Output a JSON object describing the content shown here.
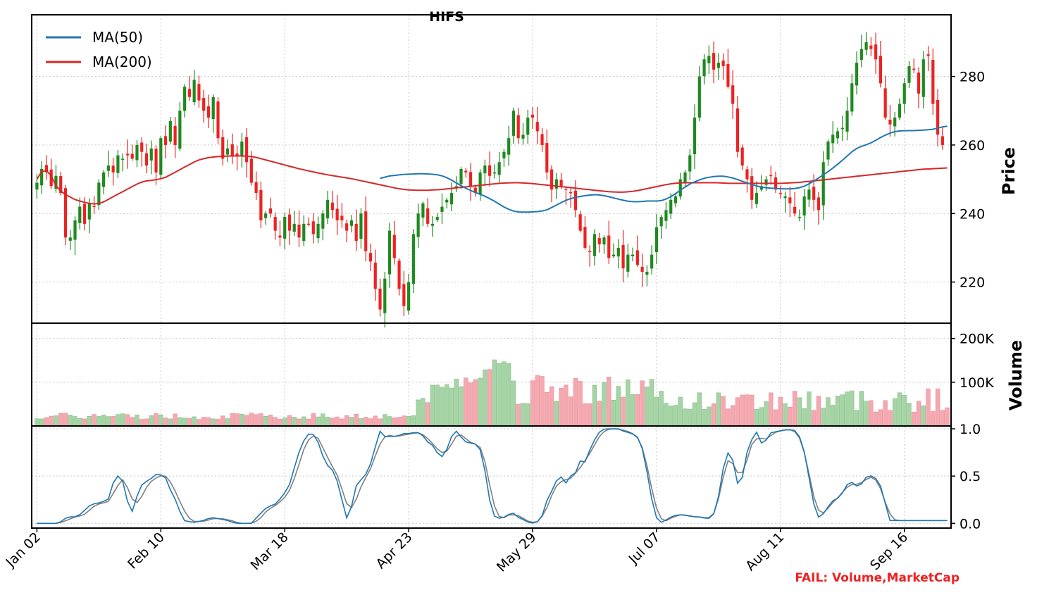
{
  "title": "HIFS",
  "fail_label": "FAIL: Volume,MarketCap",
  "colors": {
    "up": "#1f8a1f",
    "down": "#ee2222",
    "up_volume": "#a6d4a6",
    "down_volume": "#f5a8b0",
    "ma50": "#1f77b4",
    "ma200": "#d62728",
    "stoch_k": "#1f77b4",
    "stoch_d": "#808080",
    "grid": "#c8c8c8",
    "axis": "#000000",
    "fail_text": "#ee2222"
  },
  "chart_data": [
    {
      "type": "candlestick",
      "panel": "price",
      "ylabel": "Price",
      "ylim": [
        208,
        298
      ],
      "yticks": [
        220,
        240,
        260,
        280
      ],
      "grid": true,
      "legend": {
        "placement": "top-left",
        "entries": [
          "MA(50)",
          "MA(200)"
        ]
      },
      "x_ticks": [
        "Jan 02",
        "Feb 10",
        "Mar 18",
        "Apr 23",
        "May 29",
        "Jul 07",
        "Aug 11",
        "Sep 16"
      ],
      "x_tick_index": [
        0,
        26,
        52,
        78,
        104,
        130,
        156,
        182
      ],
      "candles_count": 192,
      "close": [
        249.0,
        253.0,
        252.0,
        248.0,
        251.0,
        246.0,
        233.0,
        233.0,
        238.0,
        242.0,
        237.0,
        243.0,
        242.0,
        249.0,
        252.0,
        254.0,
        252.0,
        257.0,
        256.0,
        257.0,
        256.0,
        260.0,
        258.0,
        254.0,
        259.0,
        252.0,
        262.0,
        260.0,
        267.0,
        260.0,
        270.0,
        277.0,
        274.0,
        279.0,
        273.0,
        270.0,
        268.0,
        274.0,
        262.0,
        256.0,
        259.0,
        257.0,
        257.0,
        261.0,
        255.0,
        249.0,
        246.0,
        238.0,
        240.0,
        240.0,
        235.0,
        233.0,
        239.0,
        235.0,
        237.0,
        233.0,
        237.0,
        237.0,
        234.0,
        237.0,
        240.0,
        244.0,
        241.0,
        238.0,
        238.0,
        235.0,
        238.0,
        232.0,
        240.0,
        229.0,
        226.0,
        218.0,
        212.0,
        221.0,
        235.0,
        227.0,
        218.0,
        213.0,
        220.0,
        234.0,
        240.0,
        243.0,
        237.0,
        237.0,
        239.0,
        242.0,
        244.0,
        246.0,
        248.0,
        253.0,
        252.0,
        248.0,
        246.0,
        252.0,
        254.0,
        251.0,
        252.0,
        255.0,
        258.0,
        262.0,
        270.0,
        262.0,
        263.0,
        268.0,
        268.0,
        264.0,
        260.0,
        252.0,
        247.0,
        250.0,
        248.0,
        247.0,
        246.0,
        241.0,
        235.0,
        230.0,
        229.0,
        234.0,
        231.0,
        233.0,
        227.0,
        228.0,
        230.0,
        224.0,
        228.0,
        228.0,
        225.0,
        223.0,
        223.0,
        228.0,
        236.0,
        239.0,
        241.0,
        244.0,
        245.0,
        250.0,
        252.0,
        257.0,
        268.0,
        280.0,
        285.0,
        286.0,
        282.0,
        284.0,
        283.0,
        277.0,
        272.0,
        258.0,
        254.0,
        250.0,
        244.0,
        246.0,
        248.0,
        250.0,
        251.0,
        247.0,
        246.0,
        245.0,
        243.0,
        240.0,
        239.0,
        245.0,
        247.0,
        244.0,
        241.0,
        255.0,
        261.0,
        263.0,
        264.0,
        265.0,
        270.0,
        278.0,
        284.0,
        288.0,
        290.0,
        288.0,
        285.0,
        278.0,
        268.0,
        266.0,
        268.0,
        272.0,
        278.0,
        283.0,
        282.0,
        275.0,
        285.0,
        286.0,
        272.0,
        263.0,
        260.0
      ],
      "ma50": [
        null,
        null,
        null,
        null,
        null,
        null,
        null,
        null,
        null,
        null,
        null,
        null,
        null,
        null,
        null,
        null,
        null,
        null,
        null,
        null,
        null,
        null,
        null,
        null,
        null,
        null,
        null,
        null,
        null,
        null,
        null,
        null,
        null,
        null,
        null,
        null,
        null,
        null,
        null,
        null,
        null,
        null,
        null,
        null,
        null,
        null,
        null,
        null,
        null,
        null,
        250.0,
        250.5,
        251.0,
        251.2,
        251.4,
        251.5,
        251.6,
        251.6,
        251.5,
        251.3,
        250.8,
        249.8,
        248.6,
        247.5,
        246.6,
        245.8,
        245.0,
        244.0,
        242.8,
        241.6,
        240.8,
        240.4,
        240.4,
        240.5,
        240.6,
        241.0,
        242.0,
        243.0,
        244.0,
        244.6,
        245.0,
        245.3,
        245.5,
        245.4,
        245.0,
        244.5,
        244.0,
        243.6,
        243.4,
        243.5,
        243.7,
        243.6,
        243.8,
        244.5,
        245.8,
        247.2,
        248.5,
        249.4,
        250.2,
        250.6,
        250.9,
        250.9,
        250.6,
        250.0,
        249.3,
        248.6,
        248.0,
        247.6,
        247.4,
        247.3,
        247.2,
        247.2,
        247.4,
        248.0,
        249.0,
        250.3,
        251.6,
        253.0,
        254.6,
        256.3,
        258.1,
        259.4,
        260.0,
        260.8,
        262.0,
        263.0,
        263.8,
        264.1,
        264.2,
        264.2,
        264.3,
        264.4,
        264.6,
        265.2,
        265.5
      ],
      "ma50_start_index": 0,
      "ma200": [
        250.0,
        253.0,
        252.0,
        248.0,
        246.0,
        245.0,
        244.0,
        243.5,
        243.0,
        242.8,
        243.0,
        244.0,
        245.0,
        246.0,
        247.0,
        248.0,
        249.0,
        249.5,
        249.7,
        250.0,
        250.5,
        251.5,
        252.5,
        253.5,
        254.5,
        255.5,
        256.0,
        256.4,
        256.6,
        256.7,
        256.8,
        256.8,
        256.8,
        256.7,
        256.5,
        256.0,
        255.5,
        255.0,
        254.5,
        254.0,
        253.5,
        253.0,
        252.6,
        252.2,
        251.8,
        251.4,
        251.1,
        250.8,
        250.5,
        250.2,
        249.8,
        249.4,
        249.0,
        248.6,
        248.2,
        247.8,
        247.4,
        247.1,
        246.9,
        246.8,
        246.8,
        246.8,
        246.9,
        247.0,
        247.2,
        247.4,
        247.6,
        247.8,
        248.0,
        248.2,
        248.4,
        248.6,
        248.8,
        248.9,
        249.0,
        249.0,
        248.9,
        248.8,
        248.6,
        248.4,
        248.2,
        248.0,
        247.8,
        247.6,
        247.4,
        247.2,
        247.0,
        246.8,
        246.6,
        246.4,
        246.3,
        246.2,
        246.3,
        246.5,
        246.8,
        247.2,
        247.6,
        248.0,
        248.4,
        248.7,
        248.9,
        249.0,
        249.0,
        249.0,
        249.0,
        249.0,
        249.0,
        248.9,
        248.8,
        248.8,
        248.8,
        248.8,
        248.8,
        248.8,
        248.8,
        248.8,
        248.8,
        248.9,
        249.0,
        249.1,
        249.3,
        249.5,
        249.7,
        249.9,
        250.1,
        250.3,
        250.5,
        250.7,
        250.9,
        251.1,
        251.3,
        251.5,
        251.7,
        251.9,
        252.1,
        252.3,
        252.5,
        252.7,
        252.9,
        253.0,
        253.1,
        253.2,
        253.3
      ]
    },
    {
      "type": "bar",
      "panel": "volume",
      "ylabel": "Volume",
      "ylim": [
        0,
        235000
      ],
      "yticks": [
        "100K",
        "200K"
      ],
      "ytick_values": [
        100000,
        200000
      ],
      "grid": true
    },
    {
      "type": "line",
      "panel": "oscillator",
      "ylim": [
        -0.05,
        1.03
      ],
      "yticks": [
        "0.0",
        "0.5",
        "1.0"
      ],
      "ytick_values": [
        0.0,
        0.5,
        1.0
      ],
      "grid": true,
      "series": [
        {
          "key": "k",
          "values": [
            0.0,
            0.0,
            0.0,
            0.0,
            0.0,
            0.02,
            0.06,
            0.07,
            0.07,
            0.1,
            0.15,
            0.2,
            0.21,
            0.22,
            0.24,
            0.27,
            0.54,
            0.47,
            0.42,
            0.05,
            0.21,
            0.38,
            0.44,
            0.45,
            0.52,
            0.51,
            0.52,
            0.38,
            0.29,
            0.15,
            0.03,
            0.02,
            0.01,
            0.02,
            0.03,
            0.05,
            0.06,
            0.05,
            0.04,
            0.03,
            0.01,
            0.0,
            0.0,
            0.0,
            0.0,
            0.07,
            0.12,
            0.17,
            0.19,
            0.21,
            0.28,
            0.35,
            0.45,
            0.68,
            0.81,
            0.93,
            0.96,
            0.92,
            0.78,
            0.62,
            0.6,
            0.5,
            0.35,
            0.04,
            0.1,
            0.38,
            0.45,
            0.5,
            0.6,
            0.78,
            0.98,
            0.92,
            0.92,
            0.92,
            0.93,
            0.95,
            0.95,
            0.96,
            0.96,
            0.92,
            0.85,
            0.82,
            0.73,
            0.7,
            0.81,
            0.96,
            0.98,
            0.88,
            0.85,
            0.85,
            0.83,
            0.74,
            0.4,
            0.1,
            0.05,
            0.06,
            0.07,
            0.13,
            0.07,
            0.05,
            0.02,
            0.0,
            0.01,
            0.04,
            0.22,
            0.32,
            0.44,
            0.5,
            0.42,
            0.5,
            0.53,
            0.66,
            0.65,
            0.78,
            0.89,
            0.97,
            1.0,
            1.0,
            1.0,
            1.0,
            0.97,
            0.96,
            0.94,
            0.9,
            0.74,
            0.44,
            0.15,
            0.0,
            0.02,
            0.05,
            0.08,
            0.09,
            0.09,
            0.08,
            0.07,
            0.07,
            0.06,
            0.05,
            0.06,
            0.2,
            0.53,
            0.75,
            0.72,
            0.42,
            0.45,
            0.74,
            0.88,
            0.97,
            0.85,
            0.88,
            0.96,
            0.97,
            0.98,
            0.99,
            0.99,
            0.98,
            0.9,
            0.72,
            0.41,
            0.13,
            0.04,
            0.13,
            0.2,
            0.26,
            0.27,
            0.36,
            0.45,
            0.42,
            0.37,
            0.47,
            0.51,
            0.49,
            0.45,
            0.3,
            0.03,
            0.03,
            0.03,
            0.03,
            0.03,
            0.03,
            0.03,
            0.03,
            0.03,
            0.03,
            0.03,
            0.03,
            0.03
          ]
        },
        {
          "key": "d",
          "values": [
            0.0,
            0.0,
            0.0,
            0.0,
            0.0,
            0.01,
            0.03,
            0.05,
            0.07,
            0.08,
            0.1,
            0.15,
            0.19,
            0.21,
            0.22,
            0.24,
            0.35,
            0.43,
            0.48,
            0.31,
            0.22,
            0.22,
            0.34,
            0.42,
            0.47,
            0.49,
            0.52,
            0.47,
            0.39,
            0.27,
            0.16,
            0.07,
            0.02,
            0.02,
            0.02,
            0.03,
            0.05,
            0.05,
            0.05,
            0.04,
            0.03,
            0.01,
            0.0,
            0.0,
            0.0,
            0.02,
            0.06,
            0.12,
            0.16,
            0.19,
            0.23,
            0.28,
            0.36,
            0.49,
            0.65,
            0.81,
            0.9,
            0.93,
            0.89,
            0.77,
            0.67,
            0.57,
            0.48,
            0.3,
            0.16,
            0.17,
            0.31,
            0.44,
            0.52,
            0.63,
            0.79,
            0.89,
            0.94,
            0.92,
            0.92,
            0.93,
            0.94,
            0.95,
            0.96,
            0.95,
            0.91,
            0.86,
            0.8,
            0.75,
            0.75,
            0.82,
            0.92,
            0.94,
            0.9,
            0.86,
            0.84,
            0.81,
            0.66,
            0.41,
            0.18,
            0.07,
            0.06,
            0.09,
            0.09,
            0.08,
            0.05,
            0.02,
            0.01,
            0.02,
            0.09,
            0.19,
            0.33,
            0.42,
            0.45,
            0.47,
            0.48,
            0.56,
            0.61,
            0.7,
            0.77,
            0.88,
            0.95,
            0.99,
            1.0,
            1.0,
            0.99,
            0.98,
            0.96,
            0.93,
            0.86,
            0.69,
            0.44,
            0.2,
            0.06,
            0.02,
            0.05,
            0.07,
            0.09,
            0.09,
            0.08,
            0.07,
            0.07,
            0.06,
            0.06,
            0.1,
            0.26,
            0.49,
            0.67,
            0.63,
            0.53,
            0.54,
            0.69,
            0.86,
            0.9,
            0.9,
            0.89,
            0.94,
            0.97,
            0.98,
            0.99,
            0.99,
            0.96,
            0.87,
            0.68,
            0.42,
            0.19,
            0.1,
            0.12,
            0.2,
            0.24,
            0.3,
            0.36,
            0.41,
            0.41,
            0.42,
            0.45,
            0.49,
            0.48,
            0.41,
            0.26,
            0.12,
            0.04,
            0.03,
            0.03,
            0.03,
            0.03,
            0.03,
            0.03,
            0.03,
            0.03,
            0.03,
            0.03,
            0.03
          ]
        }
      ]
    }
  ]
}
